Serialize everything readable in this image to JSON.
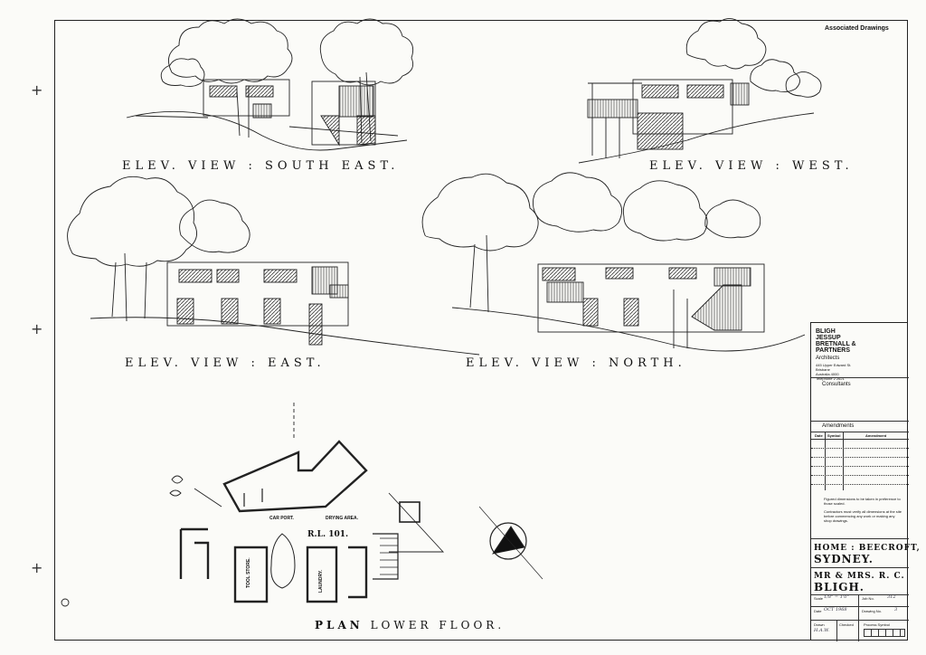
{
  "views": {
    "south_east": "ELEV. VIEW : SOUTH  EAST.",
    "west": "ELEV. VIEW : WEST.",
    "east": "ELEV. VIEW : EAST.",
    "north": "ELEV. VIEW : NORTH."
  },
  "plan": {
    "title_bold": "PLAN",
    "title_rest": "LOWER  FLOOR.",
    "carport": "CAR PORT.",
    "drying_area": "DRYING AREA.",
    "rl": "R.L. 101.",
    "tool_store": "TOOL STORE.",
    "laundry": "LAUNDRY."
  },
  "header": {
    "associated_drawings": "Associated Drawings"
  },
  "title_block": {
    "firm_line1": "BLIGH",
    "firm_line2": "JESSUP",
    "firm_line3": "BRETNALL &",
    "firm_line4": "PARTNERS",
    "architects": "Architects",
    "address_line1": "445 Upper Edward St.",
    "address_line2": "Brisbane",
    "address_line3": "Australia 4000",
    "telephone": "Telephone 2 2621",
    "consultants": "Consultants",
    "amendments": "Amendments",
    "col_date": "Date",
    "col_symbol": "Symbol",
    "col_amendment": "Amendment",
    "note1": "Figured dimensions to be taken in preference to those scaled.",
    "note2": "Contractors must verify all dimensions at the site before commencing any work or making any shop drawings.",
    "project_line1": "HOME : BEECROFT,",
    "project_line2": "SYDNEY.",
    "client_line1": "MR & MRS. R. C.",
    "client_line2": "BLIGH.",
    "scale_label": "Scale",
    "scale_value": "1/8\" = 1'0\"",
    "job_no_label": "Job No.",
    "job_no_value": "312",
    "date_label": "Date",
    "date_value": "OCT 1968",
    "drawing_no_label": "Drawing No.",
    "drawing_no_value": "3",
    "drawn_label": "Drawn",
    "drawn_value": "H.A.W.",
    "checked_label": "Checked",
    "process_symbol_label": "Process Symbol"
  }
}
